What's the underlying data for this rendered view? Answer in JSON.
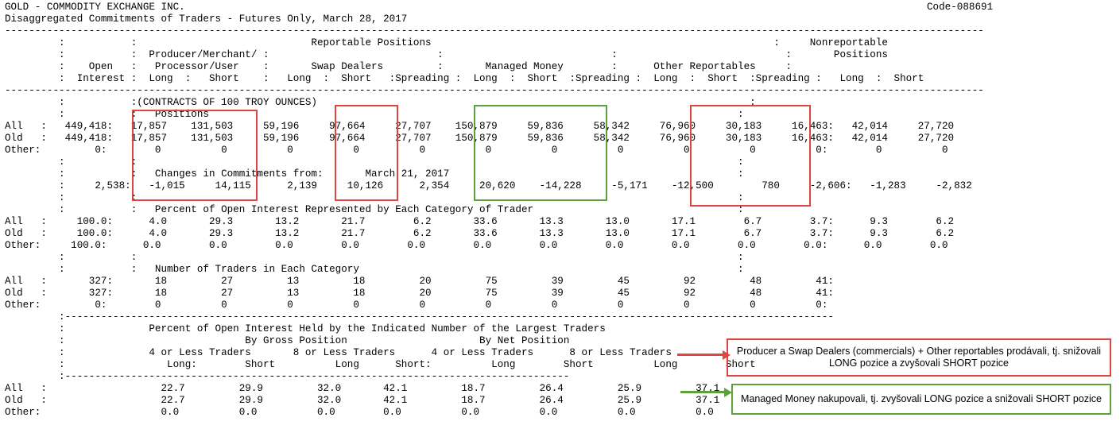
{
  "report": {
    "code": "Code-088691",
    "lines": [
      "GOLD - COMMODITY EXCHANGE INC.",
      "Disaggregated Commitments of Traders - Futures Only, March 28, 2017",
      "-------------------------------------------------------------------------------------------------------------------------------------------------------------------",
      "         :           :                             Reportable Positions                                                         :     Nonreportable",
      "         :           :  Producer/Merchant/ :                            :                            :                            :       Positions",
      "         :    Open   :   Processor/User    :       Swap Dealers         :       Managed Money        :      Other Reportables     :",
      "         :  Interest :  Long  :   Short    :   Long  :  Short   :Spreading :  Long  :  Short  :Spreading :  Long  :  Short  :Spreading :   Long  :  Short",
      "-------------------------------------------------------------------------------------------------------------------------------------------------------------------",
      "         :           :(CONTRACTS OF 100 TROY OUNCES)                                                                        :",
      "         :           :   Positions                                                                                        :",
      "All   :   449,418:   17,857    131,503     59,196     97,664     27,707    150,879     59,836     58,342     76,960     30,183     16,463:   42,014     27,720",
      "Old   :   449,418:   17,857    131,503     59,196     97,664     27,707    150,879     59,836     58,342     76,960     30,183     16,463:   42,014     27,720",
      "Other:         0:        0          0          0          0          0          0          0          0          0          0          0:        0          0",
      "         :           :                                                                                                    :",
      "         :           :   Changes in Commitments from:       March 21, 2017                                                :",
      "         :     2,538:   -1,015     14,115      2,139     10,126      2,354     20,620    -14,228     -5,171    -12,500        780     -2,606:   -1,283     -2,832",
      "         :           :                                                                                                    :",
      "         :           :   Percent of Open Interest Represented by Each Category of Trader                                  :",
      "All   :     100.0:      4.0       29.3       13.2       21.7        6.2       33.6       13.3       13.0       17.1        6.7        3.7:      9.3        6.2",
      "Old   :     100.0:      4.0       29.3       13.2       21.7        6.2       33.6       13.3       13.0       17.1        6.7        3.7:      9.3        6.2",
      "Other:     100.0:      0.0        0.0        0.0        0.0        0.0        0.0        0.0        0.0        0.0        0.0        0.0:      0.0        0.0",
      "         :           :                                                                                                    :",
      "         :           :   Number of Traders in Each Category                                                               :",
      "All   :       327:       18         27         13         18         20         75         39         45         92         48         41:",
      "Old   :       327:       18         27         13         18         20         75         39         45         92         48         41:",
      "Other:         0:        0          0          0          0          0          0          0          0          0          0          0:",
      "         :--------------------------------------------------------------------------------------------------------------------------------",
      "         :              Percent of Open Interest Held by the Indicated Number of the Largest Traders",
      "         :                              By Gross Position                      By Net Position",
      "         :              4 or Less Traders       8 or Less Traders      4 or Less Traders      8 or Less Traders",
      "         :                 Long:        Short          Long      Short:          Long        Short          Long        Short",
      "         :------------------------------------------------------------------------------------",
      "All   :                   22.7         29.9         32.0       42.1         18.7         26.4         25.9         37.1",
      "Old   :                   22.7         29.9         32.0       42.1         18.7         26.4         25.9         37.1",
      "Other:                    0.0          0.0          0.0        0.0          0.0          0.0          0.0          0.0"
    ]
  },
  "annotations": {
    "red_note": "Producer a Swap Dealers (commercials) + Other reportables prodávali, tj. snižovali LONG pozice a zvyšovali SHORT pozice",
    "green_note": "Managed Money nakupovali, tj. zvyšovali LONG pozice a snižovali SHORT pozice",
    "red_color": "#e0463f",
    "green_color": "#5ea03a"
  }
}
